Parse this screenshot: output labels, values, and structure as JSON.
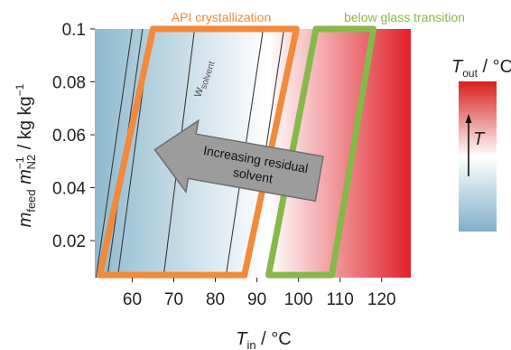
{
  "chart_data": {
    "type": "heatmap",
    "xlim": [
      51,
      127
    ],
    "ylim": [
      0.006,
      0.1
    ],
    "xticks": [
      60,
      70,
      80,
      90,
      100,
      110,
      120
    ],
    "yticks": [
      0.02,
      0.04,
      0.06,
      0.08,
      0.1
    ],
    "xtick_labels": [
      "60",
      "70",
      "80",
      "90",
      "100",
      "110",
      "120"
    ],
    "ytick_labels": [
      "0.02",
      "0.04",
      "0.06",
      "0.08",
      "0.1"
    ],
    "xlabel": {
      "main": "T",
      "sub": "in",
      "rest": " / °C"
    },
    "ylabel": {
      "m": "m",
      "feed": "feed",
      "m2": " m",
      "sup": "−1",
      "n2": "N2",
      "rest": " / kg kg",
      "exp": "−1"
    },
    "colorbar": {
      "label": {
        "main": "T",
        "sub": "out",
        "rest": " / °C"
      },
      "arrow_label": "T",
      "colors": [
        "#d81e1e",
        "#ffffff",
        "#7fb0c8"
      ]
    },
    "heatmap_colors": {
      "cold": "#8fb9cf",
      "mid": "#ffffff",
      "hot": "#e0202a"
    },
    "contour_label": {
      "main": "w",
      "sub": "solvent"
    },
    "contours": [
      {
        "x_bottom": 51.3,
        "x_top": 60.0
      },
      {
        "x_bottom": 54.0,
        "x_top": 62.5
      },
      {
        "x_bottom": 56.5,
        "x_top": 64.5
      },
      {
        "x_bottom": 67.5,
        "x_top": 75.0
      },
      {
        "x_bottom": 82.5,
        "x_top": 91.5
      },
      {
        "x_bottom": 87.5,
        "x_top": 96.5
      }
    ],
    "regions": [
      {
        "name": "API crystallization",
        "color": "#f28a3a",
        "polygon": [
          [
            52.2,
            0.007
          ],
          [
            87.0,
            0.007
          ],
          [
            99.5,
            0.1
          ],
          [
            65.0,
            0.1
          ]
        ]
      },
      {
        "name": "below glass transition",
        "color": "#86b84a",
        "polygon": [
          [
            92.8,
            0.007
          ],
          [
            108.0,
            0.007
          ],
          [
            118.0,
            0.1
          ],
          [
            104.2,
            0.1
          ]
        ]
      }
    ],
    "annotation": {
      "line1": "Increasing residual",
      "line2": "solvent",
      "direction": "left"
    }
  }
}
